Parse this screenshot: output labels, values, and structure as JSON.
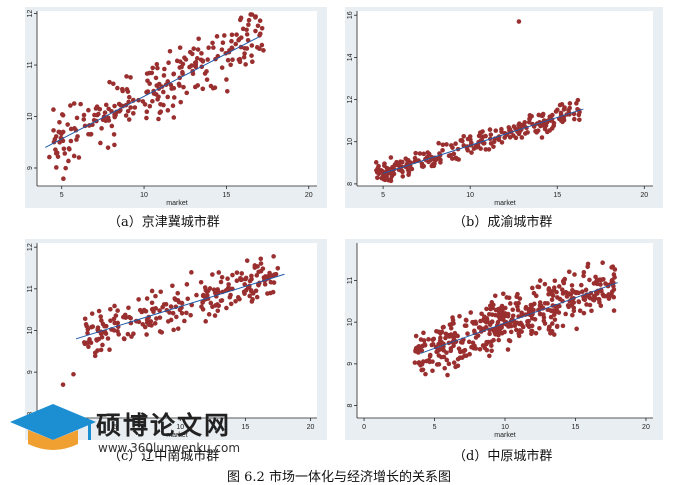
{
  "figure_title": "图 6.2  市场一体化与经济增长的关系图",
  "watermark": {
    "name": "硕博论文网",
    "url": "www.360lunwenku.com"
  },
  "chart_data": [
    {
      "type": "scatter",
      "caption": "（a）京津冀城市群",
      "xlabel": "market",
      "ylabel": "",
      "xlim": [
        3.5,
        20.5
      ],
      "ylim": [
        8.65,
        12.05
      ],
      "xticks": [
        5,
        10,
        15,
        20
      ],
      "yticks": [
        9,
        10,
        11,
        12
      ],
      "fit_line": [
        [
          4.0,
          9.4
        ],
        [
          17.0,
          11.55
        ]
      ],
      "cloud": {
        "n": 260,
        "x_range": [
          4.2,
          17.3
        ],
        "y_floor": 8.75,
        "y_ceil": 12.0,
        "spread": 0.55,
        "trend": [
          [
            4.0,
            9.4
          ],
          [
            17.0,
            11.55
          ]
        ],
        "seed": 11
      },
      "colors": {
        "point": "#9a2f2f",
        "line": "#1e5aa8",
        "plot_bg": "#ffffff",
        "panel_bg": "#e9eef2"
      }
    },
    {
      "type": "scatter",
      "caption": "（b）成渝城市群",
      "xlabel": "market",
      "ylabel": "",
      "xlim": [
        3.5,
        20.5
      ],
      "ylim": [
        7.9,
        16.2
      ],
      "xticks": [
        5,
        10,
        15,
        20
      ],
      "yticks": [
        8,
        10,
        12,
        14,
        16
      ],
      "fit_line": [
        [
          5.0,
          8.5
        ],
        [
          16.5,
          11.55
        ]
      ],
      "outliers": [
        [
          12.8,
          15.7
        ]
      ],
      "cloud": {
        "n": 260,
        "x_range": [
          4.6,
          16.3
        ],
        "y_floor": 8.1,
        "y_ceil": 12.0,
        "spread": 0.5,
        "trend": [
          [
            5.0,
            8.5
          ],
          [
            16.5,
            11.55
          ]
        ],
        "seed": 23
      },
      "colors": {
        "point": "#9a2f2f",
        "line": "#1e5aa8",
        "plot_bg": "#ffffff",
        "panel_bg": "#e9eef2"
      }
    },
    {
      "type": "scatter",
      "caption": "（c）辽中南城市群",
      "xlabel": "market",
      "ylabel": "",
      "xlim": [
        -1.0,
        20.5
      ],
      "ylim": [
        7.9,
        12.1
      ],
      "xticks": [
        0,
        5,
        10,
        15,
        20
      ],
      "yticks": [
        8,
        9,
        10,
        11,
        12
      ],
      "fit_line": [
        [
          2.0,
          9.8
        ],
        [
          18.0,
          11.35
        ]
      ],
      "outliers": [
        [
          1.0,
          8.7
        ],
        [
          1.8,
          8.95
        ]
      ],
      "cloud": {
        "n": 240,
        "x_range": [
          2.5,
          17.5
        ],
        "y_floor": 9.0,
        "y_ceil": 11.8,
        "spread": 0.5,
        "trend": [
          [
            2.0,
            9.8
          ],
          [
            18.0,
            11.35
          ]
        ],
        "seed": 37
      },
      "colors": {
        "point": "#9a2f2f",
        "line": "#1e5aa8",
        "plot_bg": "#ffffff",
        "panel_bg": "#e9eef2"
      }
    },
    {
      "type": "scatter",
      "caption": "（d）中原城市群",
      "xlabel": "market",
      "ylabel": "",
      "xlim": [
        -0.5,
        20.5
      ],
      "ylim": [
        7.7,
        11.9
      ],
      "xticks": [
        0,
        5,
        10,
        15,
        20
      ],
      "yticks": [
        8,
        9,
        10,
        11
      ],
      "fit_line": [
        [
          4.0,
          9.25
        ],
        [
          18.0,
          10.95
        ]
      ],
      "cloud": {
        "n": 460,
        "x_range": [
          3.6,
          17.8
        ],
        "y_floor": 7.9,
        "y_ceil": 11.65,
        "spread": 0.55,
        "trend": [
          [
            4.0,
            9.25
          ],
          [
            18.0,
            10.95
          ]
        ],
        "seed": 51
      },
      "colors": {
        "point": "#9a2f2f",
        "line": "#1e5aa8",
        "plot_bg": "#ffffff",
        "panel_bg": "#e9eef2"
      }
    }
  ]
}
